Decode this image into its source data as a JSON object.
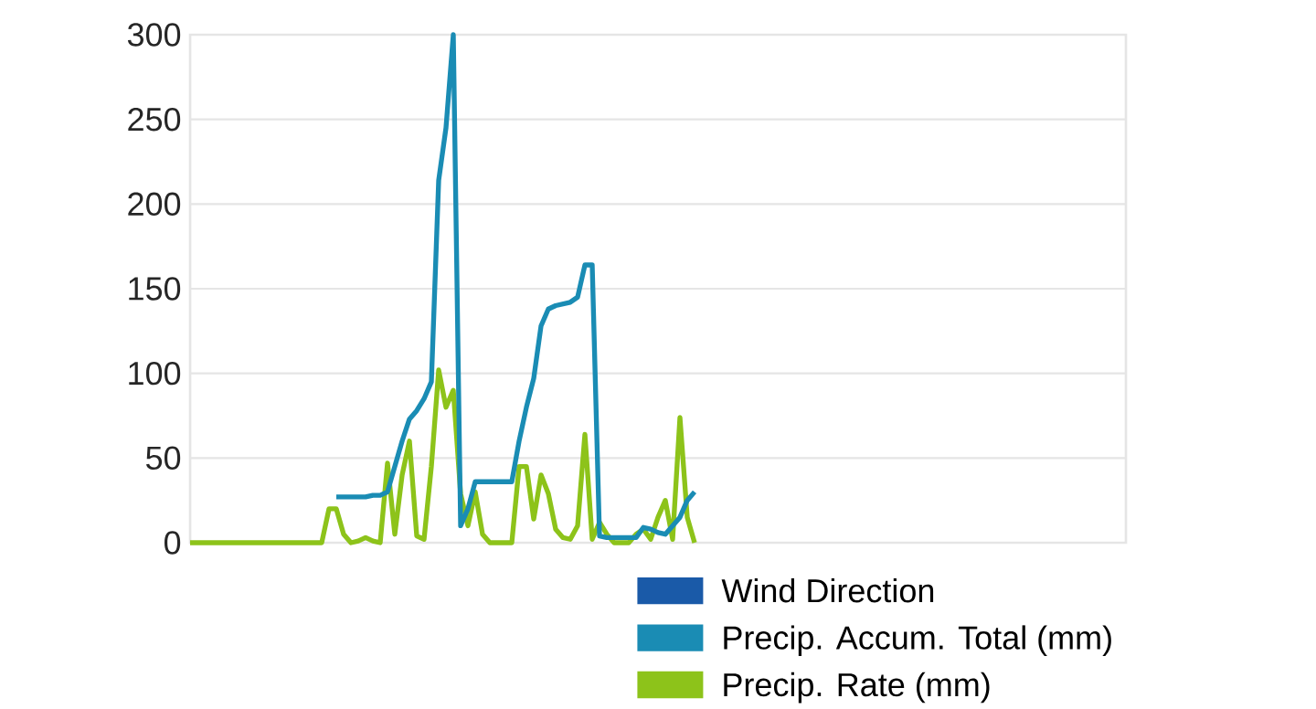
{
  "chart_data": {
    "type": "line",
    "categories": [
      null,
      null,
      null,
      null,
      null,
      null,
      null,
      null,
      null,
      null,
      null,
      null,
      null,
      null,
      null,
      null,
      null,
      null,
      null,
      null,
      null,
      null,
      null,
      null,
      null,
      null,
      null,
      null,
      null,
      null,
      null,
      null,
      null,
      null,
      null,
      null,
      null,
      null,
      null,
      null,
      null,
      null,
      null,
      null,
      null,
      null,
      null,
      null,
      null,
      null,
      null,
      null,
      null,
      null,
      null,
      null,
      null,
      null,
      null,
      null,
      null,
      null,
      null,
      null,
      null,
      null,
      null,
      null,
      null,
      null,
      null,
      null,
      null,
      null,
      null,
      null,
      null,
      null,
      null,
      null,
      null,
      null,
      null,
      null,
      null,
      null,
      null,
      null,
      null,
      null,
      null,
      null,
      null,
      null,
      null,
      null,
      null,
      null,
      null,
      null,
      null,
      null,
      null,
      null,
      null,
      null,
      null,
      null,
      null,
      null,
      null,
      null,
      null,
      null,
      null,
      null,
      null,
      null,
      null,
      null,
      null,
      null,
      null,
      null,
      null,
      null,
      null,
      null,
      null
    ],
    "series": [
      {
        "name": "Wind Direction",
        "color": "#1a5aa8",
        "values": [
          null,
          null,
          null,
          null,
          null,
          null,
          null,
          null,
          null,
          null,
          null,
          null,
          null,
          null,
          null,
          null,
          null,
          null,
          null,
          null,
          null,
          null,
          null,
          null,
          null,
          null,
          null,
          null,
          null,
          null,
          null,
          null,
          null,
          null,
          null,
          null,
          null,
          null,
          null,
          null,
          null,
          null,
          null,
          null,
          null,
          null,
          null,
          null,
          null,
          null,
          null,
          null,
          null,
          null,
          null,
          null,
          null,
          null,
          null,
          null,
          null,
          null,
          null,
          null,
          null,
          null,
          null,
          null,
          null,
          null,
          null,
          null,
          null,
          null,
          null,
          null,
          null,
          null,
          null,
          null,
          null,
          null,
          null,
          null,
          null,
          null,
          null,
          null,
          null,
          null,
          null,
          null,
          null,
          null,
          null,
          null,
          null,
          null,
          null,
          null,
          null,
          null,
          null,
          null,
          null,
          null,
          null,
          null,
          null,
          null,
          null,
          null,
          null,
          null,
          null,
          null,
          null,
          null,
          null,
          null,
          null,
          null,
          null,
          null,
          null,
          null,
          null,
          null,
          null
        ]
      },
      {
        "name": "Precip. Accum. Total (mm)",
        "color": "#1a8cb4",
        "values": [
          null,
          null,
          null,
          null,
          null,
          null,
          null,
          null,
          null,
          null,
          null,
          null,
          null,
          null,
          null,
          null,
          null,
          null,
          null,
          null,
          27,
          27,
          27,
          27,
          27,
          28,
          28,
          30,
          45,
          60,
          73,
          78,
          85,
          95,
          214,
          245,
          300,
          10,
          20,
          36,
          36,
          36,
          36,
          36,
          36,
          60,
          80,
          97,
          128,
          138,
          140,
          141,
          142,
          145,
          164,
          164,
          4,
          3,
          3,
          3,
          3,
          3,
          9,
          8,
          6,
          5,
          10,
          15,
          25,
          30,
          null,
          null,
          null,
          null,
          null,
          null,
          null,
          null,
          null,
          null,
          null,
          null,
          null,
          null,
          null,
          null,
          null,
          null,
          null,
          null,
          null,
          null,
          null,
          null,
          null,
          null,
          null,
          null,
          null,
          null,
          null,
          null,
          null,
          null,
          null,
          null,
          null,
          null,
          null,
          null,
          null,
          null,
          null,
          null,
          null,
          null,
          null,
          null,
          null,
          null,
          null,
          null,
          null,
          null,
          null,
          null,
          null,
          null,
          null
        ]
      },
      {
        "name": "Precip. Rate (mm)",
        "color": "#8dc31a",
        "values": [
          0,
          0,
          0,
          0,
          0,
          0,
          0,
          0,
          0,
          0,
          0,
          0,
          0,
          0,
          0,
          0,
          0,
          0,
          0,
          20,
          20,
          5,
          0,
          1,
          3,
          1,
          0,
          47,
          5,
          40,
          60,
          4,
          2,
          45,
          102,
          80,
          90,
          29,
          10,
          30,
          5,
          0,
          0,
          0,
          0,
          45,
          45,
          14,
          40,
          29,
          8,
          3,
          2,
          10,
          64,
          2,
          12,
          5,
          0,
          0,
          0,
          5,
          8,
          2,
          15,
          25,
          2,
          74,
          15,
          0,
          null,
          null,
          null,
          null,
          null,
          null,
          null,
          null,
          null,
          null,
          null,
          null,
          null,
          null,
          null,
          null,
          null,
          null,
          null,
          null,
          null,
          null,
          null,
          null,
          null,
          null,
          null,
          null,
          null,
          null,
          null,
          null,
          null,
          null,
          null,
          null,
          null,
          null,
          null,
          null,
          null,
          null,
          null,
          null,
          null,
          null,
          null,
          null,
          null,
          null,
          null,
          null,
          null,
          null,
          null,
          null,
          null,
          null,
          null
        ]
      }
    ],
    "ylim": [
      0,
      300
    ],
    "yticks": [
      0,
      50,
      100,
      150,
      200,
      250,
      300
    ],
    "grid": "y",
    "legend": "bottom",
    "tick_labels": "y",
    "marker": "none",
    "line_style": "solid"
  }
}
